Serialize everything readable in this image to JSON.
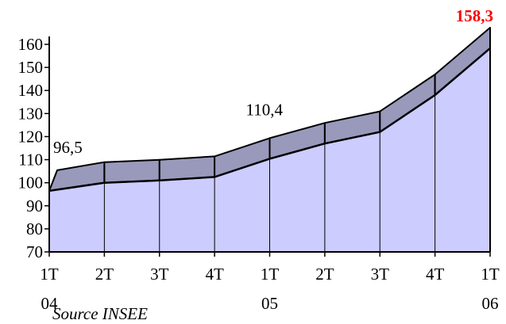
{
  "chart_data": {
    "type": "area",
    "style": "3d",
    "categories": [
      [
        "1T",
        "04"
      ],
      [
        "2T",
        ""
      ],
      [
        "3T",
        ""
      ],
      [
        "4T",
        ""
      ],
      [
        "1T",
        "05"
      ],
      [
        "2T",
        ""
      ],
      [
        "3T",
        ""
      ],
      [
        "4T",
        ""
      ],
      [
        "1T",
        "06"
      ]
    ],
    "values": [
      96.5,
      100,
      101,
      102.5,
      110.4,
      117,
      122,
      138,
      158.3
    ],
    "yticks": [
      70,
      80,
      90,
      100,
      110,
      120,
      130,
      140,
      150,
      160
    ],
    "ylim": [
      70,
      160
    ],
    "data_labels": [
      {
        "index": 0,
        "text": "96,5"
      },
      {
        "index": 4,
        "text": "110,4"
      },
      {
        "index": 8,
        "text": "158,3",
        "highlight": true
      }
    ],
    "colors": {
      "front": "#ccccff",
      "top": "#9999bb",
      "highlight_label": "#ff0000"
    },
    "grid": false
  },
  "source": "Source INSEE"
}
